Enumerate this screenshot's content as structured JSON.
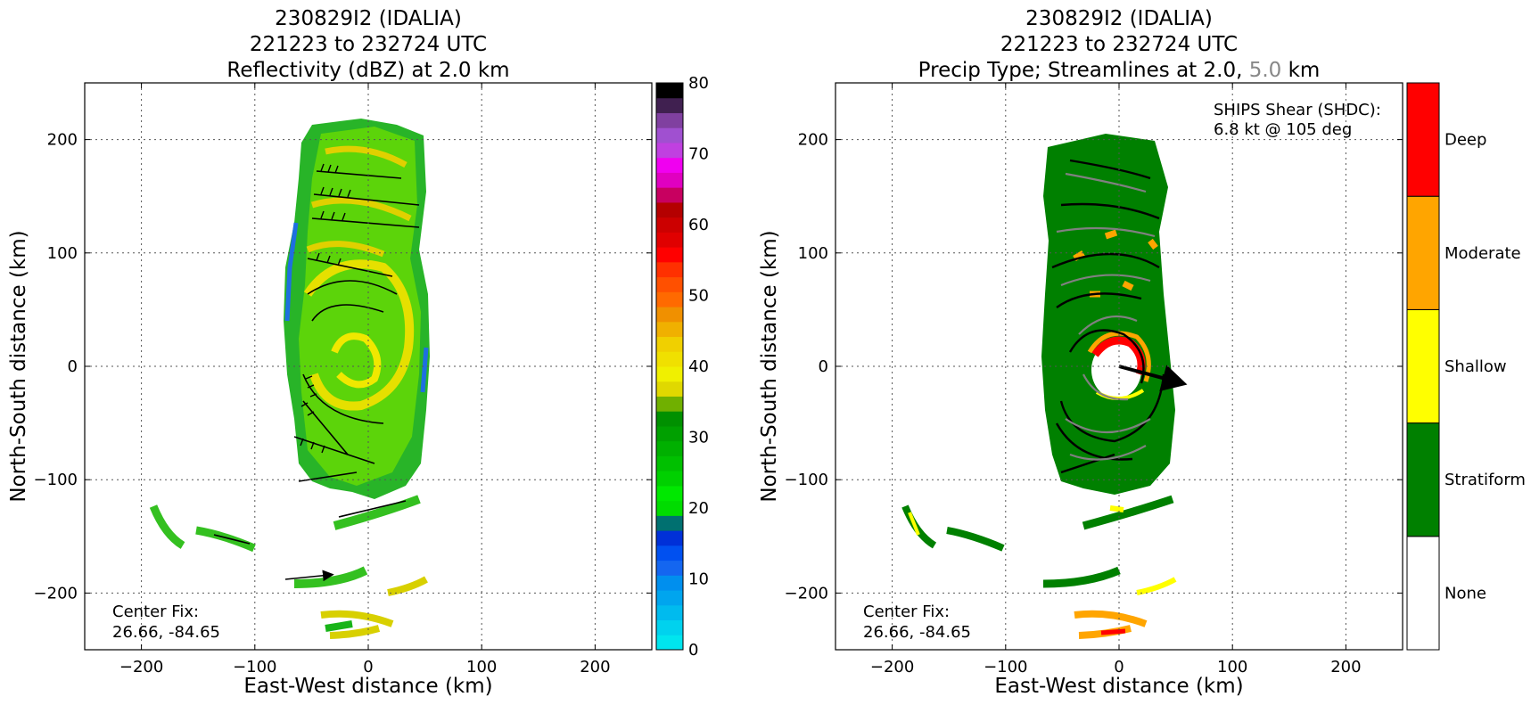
{
  "chart_data": [
    {
      "type": "heatmap",
      "title_lines": [
        "230829I2 (IDALIA)",
        "221223 to 232724 UTC",
        "Reflectivity (dBZ) at 2.0 km"
      ],
      "xlabel": "East-West distance (km)",
      "ylabel": "North-South distance (km)",
      "xlim": [
        -250,
        250
      ],
      "ylim": [
        -250,
        250
      ],
      "xticks": [
        -200,
        -100,
        0,
        100,
        200
      ],
      "yticks": [
        -200,
        -100,
        0,
        100,
        200
      ],
      "xtick_labels": [
        "−200",
        "−100",
        "0",
        "100",
        "200"
      ],
      "ytick_labels": [
        "−200",
        "−100",
        "0",
        "100",
        "200"
      ],
      "grid": true,
      "annotation": [
        "Center Fix:",
        "26.66, -84.65"
      ],
      "colorbar": {
        "min": 0,
        "max": 80,
        "step": 2.5,
        "ticks": [
          0,
          10,
          20,
          30,
          40,
          50,
          60,
          70,
          80
        ],
        "colors": [
          "#00e5ee",
          "#00d2ee",
          "#00bbee",
          "#00a5ee",
          "#008fee",
          "#1466f0",
          "#0050f0",
          "#0030d8",
          "#007070",
          "#00dc00",
          "#00e800",
          "#00d000",
          "#00c000",
          "#00b000",
          "#00a000",
          "#009000",
          "#70b000",
          "#e0d800",
          "#f0f000",
          "#f0e000",
          "#f0d000",
          "#f0b000",
          "#f09000",
          "#ff6a00",
          "#ff5000",
          "#ff3000",
          "#ff0000",
          "#e00000",
          "#cc0000",
          "#b40000",
          "#c80060",
          "#e000c0",
          "#f000f0",
          "#c040e0",
          "#a050d0",
          "#8040a0",
          "#402050",
          "#000000"
        ]
      }
    },
    {
      "type": "heatmap",
      "title_lines": [
        "230829I2 (IDALIA)",
        "221223 to 232724 UTC"
      ],
      "title_line3_parts": [
        "Precip Type; Streamlines at 2.0, ",
        "5.0",
        " km"
      ],
      "xlabel": "East-West distance (km)",
      "ylabel": "North-South distance (km)",
      "xlim": [
        -250,
        250
      ],
      "ylim": [
        -250,
        250
      ],
      "xticks": [
        -200,
        -100,
        0,
        100,
        200
      ],
      "yticks": [
        -200,
        -100,
        0,
        100,
        200
      ],
      "xtick_labels": [
        "−200",
        "−100",
        "0",
        "100",
        "200"
      ],
      "ytick_labels": [
        "−200",
        "−100",
        "0",
        "100",
        "200"
      ],
      "grid": true,
      "annotation": [
        "Center Fix:",
        "26.66, -84.65"
      ],
      "shear_text": [
        "SHIPS Shear (SHDC):",
        "6.8 kt @ 105 deg"
      ],
      "shear_direction_deg": 105,
      "colorbar": {
        "categories": [
          "None",
          "Stratiform",
          "Shallow",
          "Moderate",
          "Deep"
        ],
        "colors": [
          "#ffffff",
          "#008000",
          "#ffff00",
          "#ffa500",
          "#ff0000"
        ]
      }
    }
  ]
}
